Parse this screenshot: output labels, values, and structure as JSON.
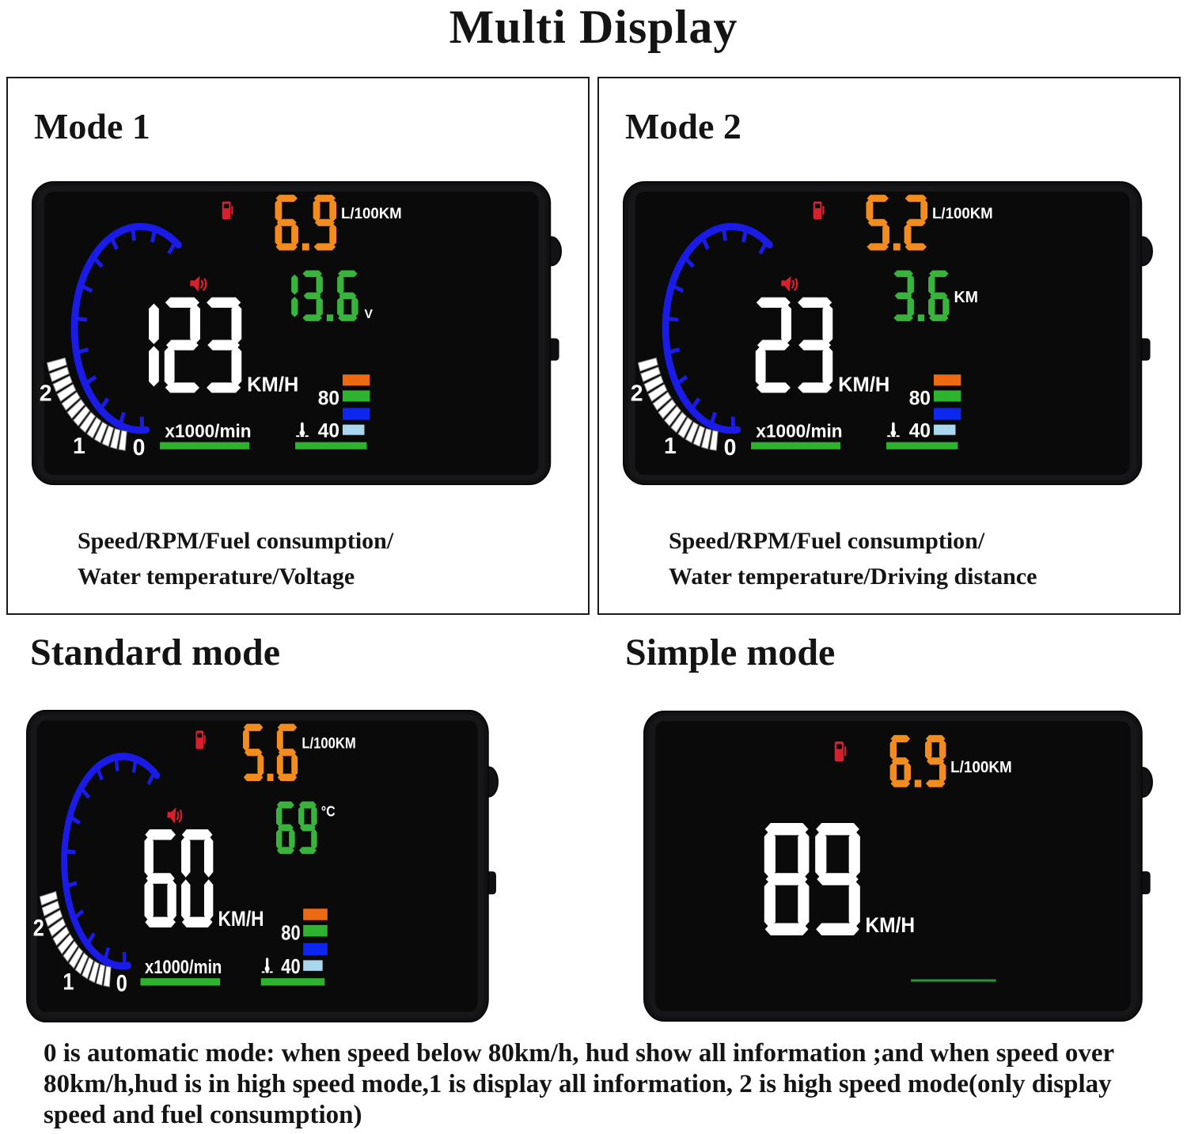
{
  "title": "Multi Display",
  "colors": {
    "orange": "#F28C1E",
    "green": "#38B43C",
    "bar_orange": "#EE6A12",
    "bar_green": "#2DB32D",
    "blue": "#1B1BE8",
    "bar_blue": "#0D27EE",
    "bar_light_blue": "#A9D7EF",
    "red": "#D7202E",
    "white": "#FFFFFF",
    "screen_black": "#0A0A0B",
    "underline_green": "#2F8F3A"
  },
  "panels": [
    {
      "heading": "Mode 1",
      "caption": [
        "Speed/RPM/Fuel consumption/",
        "Water temperature/Voltage"
      ],
      "hud": {
        "style": "full",
        "fuel": "6.9",
        "fuel_unit": "L/100KM",
        "aux": "13.6",
        "aux_unit": "V",
        "speed": "123",
        "speed_unit": "KM/H",
        "rpm_label": "x1000/min",
        "temp_high": "80",
        "temp_low": "40",
        "gauge_labels": [
          "2",
          "1",
          "0"
        ],
        "icons": [
          "fuel-pump-icon",
          "speaker-icon",
          "thermometer-icon"
        ]
      }
    },
    {
      "heading": "Mode 2",
      "caption": [
        "Speed/RPM/Fuel consumption/",
        "Water temperature/Driving distance"
      ],
      "hud": {
        "style": "full",
        "fuel": "5.2",
        "fuel_unit": "L/100KM",
        "aux": "3.6",
        "aux_unit": "KM",
        "speed": "23",
        "speed_unit": "KM/H",
        "rpm_label": "x1000/min",
        "temp_high": "80",
        "temp_low": "40",
        "gauge_labels": [
          "2",
          "1",
          "0"
        ],
        "icons": [
          "fuel-pump-icon",
          "speaker-icon",
          "thermometer-icon"
        ]
      }
    },
    {
      "heading": "Standard mode",
      "caption": [],
      "hud": {
        "style": "full",
        "fuel": "5.6",
        "fuel_unit": "L/100KM",
        "aux": "69",
        "aux_unit": "°C",
        "speed": "60",
        "speed_unit": "KM/H",
        "rpm_label": "x1000/min",
        "temp_high": "80",
        "temp_low": "40",
        "gauge_labels": [
          "2",
          "1",
          "0"
        ],
        "icons": [
          "fuel-pump-icon",
          "speaker-icon",
          "thermometer-icon"
        ]
      }
    },
    {
      "heading": "Simple mode",
      "caption": [],
      "hud": {
        "style": "simple",
        "fuel": "6.9",
        "fuel_unit": "L/100KM",
        "speed": "89",
        "speed_unit": "KM/H",
        "icons": [
          "fuel-pump-icon"
        ]
      }
    }
  ],
  "footer": "0 is automatic mode: when speed below 80km/h, hud show all information ;and when speed over\n80km/h,hud is in high speed mode,1 is display all information, 2 is high speed mode(only display\nspeed and fuel consumption)"
}
